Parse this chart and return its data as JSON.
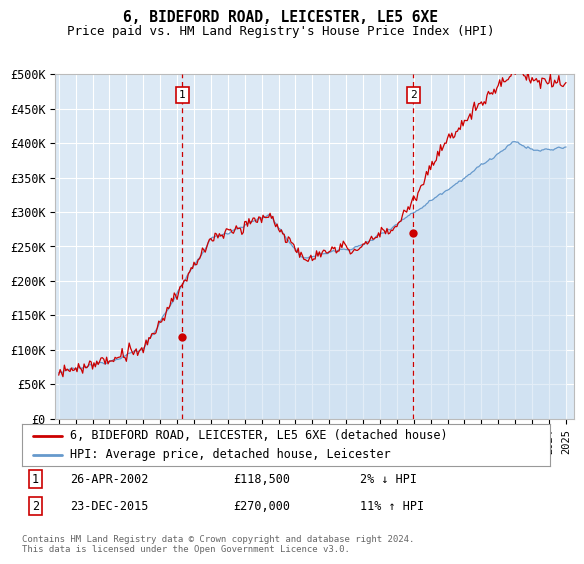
{
  "title": "6, BIDEFORD ROAD, LEICESTER, LE5 6XE",
  "subtitle": "Price paid vs. HM Land Registry's House Price Index (HPI)",
  "ylabel_ticks": [
    "£0",
    "£50K",
    "£100K",
    "£150K",
    "£200K",
    "£250K",
    "£300K",
    "£350K",
    "£400K",
    "£450K",
    "£500K"
  ],
  "ytick_values": [
    0,
    50000,
    100000,
    150000,
    200000,
    250000,
    300000,
    350000,
    400000,
    450000,
    500000
  ],
  "ylim": [
    0,
    500000
  ],
  "xlim_start": 1994.8,
  "xlim_end": 2025.5,
  "bg_color": "#dce9f5",
  "line_color_red": "#cc0000",
  "line_color_blue": "#6699cc",
  "fill_color_blue": "#c8ddf0",
  "grid_color": "#ffffff",
  "marker1_x": 2002.32,
  "marker1_y": 118500,
  "marker2_x": 2015.98,
  "marker2_y": 270000,
  "vline_color": "#cc0000",
  "legend_label_red": "6, BIDEFORD ROAD, LEICESTER, LE5 6XE (detached house)",
  "legend_label_blue": "HPI: Average price, detached house, Leicester",
  "annotation1_date": "26-APR-2002",
  "annotation1_price": "£118,500",
  "annotation1_hpi": "2% ↓ HPI",
  "annotation2_date": "23-DEC-2015",
  "annotation2_price": "£270,000",
  "annotation2_hpi": "11% ↑ HPI",
  "footnote": "Contains HM Land Registry data © Crown copyright and database right 2024.\nThis data is licensed under the Open Government Licence v3.0."
}
